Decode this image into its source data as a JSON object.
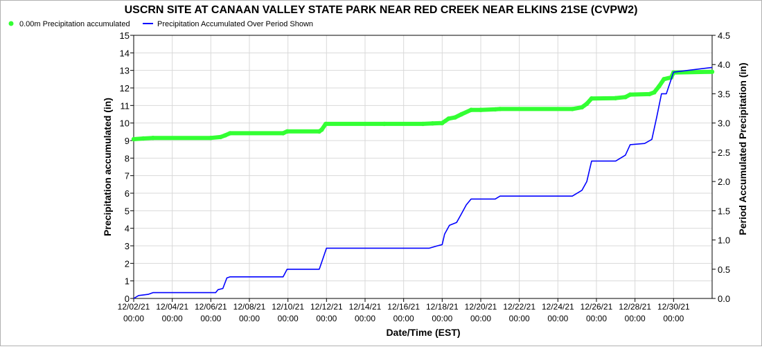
{
  "chart_data": {
    "type": "line",
    "title": "USCRN SITE AT CANAAN VALLEY STATE PARK NEAR RED CREEK NEAR ELKINS 21SE (CVPW2)",
    "xlabel": "Date/Time (EST)",
    "ylabel": "Precipitation accumulated (in)",
    "y2label": "Period Accumulated Precipitation (in)",
    "ylim": [
      0,
      15
    ],
    "y2lim": [
      0,
      4.5
    ],
    "yticks": [
      "0",
      "1",
      "2",
      "3",
      "4",
      "5",
      "6",
      "7",
      "8",
      "9",
      "10",
      "11",
      "12",
      "13",
      "14",
      "15"
    ],
    "y2ticks": [
      "0.0",
      "0.5",
      "1.0",
      "1.5",
      "2.0",
      "2.5",
      "3.0",
      "3.5",
      "4.0",
      "4.5"
    ],
    "xlim": [
      "2021-12-02 00:00",
      "2022-01-01 00:00"
    ],
    "xticks": [
      {
        "date": "2021-12-02 00:00",
        "line1": "12/02/21",
        "line2": "00:00"
      },
      {
        "date": "2021-12-04 00:00",
        "line1": "12/04/21",
        "line2": "00:00"
      },
      {
        "date": "2021-12-06 00:00",
        "line1": "12/06/21",
        "line2": "00:00"
      },
      {
        "date": "2021-12-08 00:00",
        "line1": "12/08/21",
        "line2": "00:00"
      },
      {
        "date": "2021-12-10 00:00",
        "line1": "12/10/21",
        "line2": "00:00"
      },
      {
        "date": "2021-12-12 00:00",
        "line1": "12/12/21",
        "line2": "00:00"
      },
      {
        "date": "2021-12-14 00:00",
        "line1": "12/14/21",
        "line2": "00:00"
      },
      {
        "date": "2021-12-16 00:00",
        "line1": "12/16/21",
        "line2": "00:00"
      },
      {
        "date": "2021-12-18 00:00",
        "line1": "12/18/21",
        "line2": "00:00"
      },
      {
        "date": "2021-12-20 00:00",
        "line1": "12/20/21",
        "line2": "00:00"
      },
      {
        "date": "2021-12-22 00:00",
        "line1": "12/22/21",
        "line2": "00:00"
      },
      {
        "date": "2021-12-24 00:00",
        "line1": "12/24/21",
        "line2": "00:00"
      },
      {
        "date": "2021-12-26 00:00",
        "line1": "12/26/21",
        "line2": "00:00"
      },
      {
        "date": "2021-12-28 00:00",
        "line1": "12/28/21",
        "line2": "00:00"
      },
      {
        "date": "2021-12-30 00:00",
        "line1": "12/30/21",
        "line2": "00:00"
      }
    ],
    "grid": true,
    "legend_position": "top-left",
    "series": [
      {
        "name": "0.00m Precipitation accumulated",
        "axis": "left",
        "color": "#33ff33",
        "style": "thick dotted line",
        "points": [
          [
            "2021-12-02 00:00",
            9.08
          ],
          [
            "2021-12-02 12:00",
            9.12
          ],
          [
            "2021-12-03 00:00",
            9.15
          ],
          [
            "2021-12-06 00:00",
            9.15
          ],
          [
            "2021-12-06 12:00",
            9.2
          ],
          [
            "2021-12-06 18:00",
            9.3
          ],
          [
            "2021-12-07 00:00",
            9.42
          ],
          [
            "2021-12-09 18:00",
            9.42
          ],
          [
            "2021-12-09 23:00",
            9.52
          ],
          [
            "2021-12-11 15:00",
            9.52
          ],
          [
            "2021-12-11 18:00",
            9.62
          ],
          [
            "2021-12-11 23:00",
            9.95
          ],
          [
            "2021-12-15 00:00",
            9.95
          ],
          [
            "2021-12-17 00:00",
            9.95
          ],
          [
            "2021-12-17 12:00",
            9.98
          ],
          [
            "2021-12-18 00:00",
            10.0
          ],
          [
            "2021-12-18 08:00",
            10.25
          ],
          [
            "2021-12-18 16:00",
            10.32
          ],
          [
            "2021-12-19 00:00",
            10.5
          ],
          [
            "2021-12-19 12:00",
            10.75
          ],
          [
            "2021-12-20 00:00",
            10.75
          ],
          [
            "2021-12-20 18:00",
            10.78
          ],
          [
            "2021-12-21 00:00",
            10.8
          ],
          [
            "2021-12-24 18:00",
            10.8
          ],
          [
            "2021-12-25 06:00",
            10.9
          ],
          [
            "2021-12-25 12:00",
            11.1
          ],
          [
            "2021-12-25 18:00",
            11.4
          ],
          [
            "2021-12-27 00:00",
            11.42
          ],
          [
            "2021-12-27 12:00",
            11.48
          ],
          [
            "2021-12-27 18:00",
            11.62
          ],
          [
            "2021-12-28 18:00",
            11.65
          ],
          [
            "2021-12-29 00:00",
            11.75
          ],
          [
            "2021-12-29 06:00",
            12.1
          ],
          [
            "2021-12-29 12:00",
            12.5
          ],
          [
            "2021-12-29 21:00",
            12.6
          ],
          [
            "2021-12-30 00:00",
            12.88
          ],
          [
            "2022-01-01 00:00",
            12.92
          ]
        ]
      },
      {
        "name": "Precipitation Accumulated Over Period Shown",
        "axis": "right",
        "color": "#0000ff",
        "style": "thin line",
        "points": [
          [
            "2021-12-02 00:00",
            0.0
          ],
          [
            "2021-12-02 06:00",
            0.05
          ],
          [
            "2021-12-02 18:00",
            0.07
          ],
          [
            "2021-12-03 00:00",
            0.1
          ],
          [
            "2021-12-06 06:00",
            0.1
          ],
          [
            "2021-12-06 09:00",
            0.15
          ],
          [
            "2021-12-06 15:00",
            0.17
          ],
          [
            "2021-12-06 20:00",
            0.35
          ],
          [
            "2021-12-07 00:00",
            0.37
          ],
          [
            "2021-12-09 18:00",
            0.37
          ],
          [
            "2021-12-09 23:00",
            0.5
          ],
          [
            "2021-12-11 15:00",
            0.5
          ],
          [
            "2021-12-11 20:00",
            0.7
          ],
          [
            "2021-12-12 00:00",
            0.86
          ],
          [
            "2021-12-17 08:00",
            0.86
          ],
          [
            "2021-12-17 18:00",
            0.9
          ],
          [
            "2021-12-18 00:00",
            0.92
          ],
          [
            "2021-12-18 03:00",
            1.1
          ],
          [
            "2021-12-18 09:00",
            1.25
          ],
          [
            "2021-12-18 18:00",
            1.3
          ],
          [
            "2021-12-19 00:00",
            1.45
          ],
          [
            "2021-12-19 06:00",
            1.6
          ],
          [
            "2021-12-19 12:00",
            1.7
          ],
          [
            "2021-12-20 18:00",
            1.7
          ],
          [
            "2021-12-21 00:00",
            1.75
          ],
          [
            "2021-12-24 18:00",
            1.75
          ],
          [
            "2021-12-25 06:00",
            1.85
          ],
          [
            "2021-12-25 12:00",
            2.0
          ],
          [
            "2021-12-25 18:00",
            2.35
          ],
          [
            "2021-12-27 00:00",
            2.35
          ],
          [
            "2021-12-27 06:00",
            2.4
          ],
          [
            "2021-12-27 12:00",
            2.45
          ],
          [
            "2021-12-27 18:00",
            2.63
          ],
          [
            "2021-12-28 12:00",
            2.65
          ],
          [
            "2021-12-28 21:00",
            2.72
          ],
          [
            "2021-12-29 03:00",
            3.1
          ],
          [
            "2021-12-29 09:00",
            3.5
          ],
          [
            "2021-12-29 15:00",
            3.5
          ],
          [
            "2021-12-30 00:00",
            3.87
          ],
          [
            "2022-01-01 00:00",
            3.95
          ]
        ]
      }
    ]
  }
}
